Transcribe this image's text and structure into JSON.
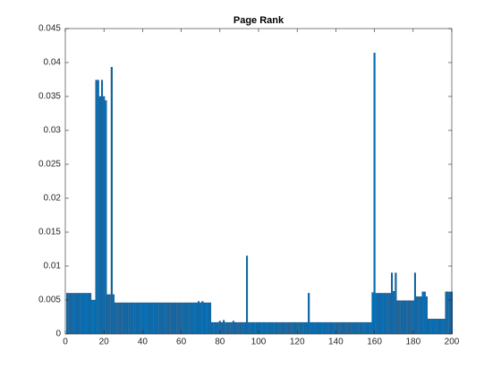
{
  "chart_data": {
    "type": "bar",
    "title": "Page Rank",
    "color": "#0072bd",
    "x": [
      1,
      2,
      3,
      4,
      5,
      6,
      7,
      8,
      9,
      10,
      11,
      12,
      13,
      14,
      15,
      16,
      17,
      18,
      19,
      20,
      21,
      22,
      23,
      24,
      25,
      26,
      27,
      28,
      29,
      30,
      31,
      32,
      33,
      34,
      35,
      36,
      37,
      38,
      39,
      40,
      41,
      42,
      43,
      44,
      45,
      46,
      47,
      48,
      49,
      50,
      51,
      52,
      53,
      54,
      55,
      56,
      57,
      58,
      59,
      60,
      61,
      62,
      63,
      64,
      65,
      66,
      67,
      68,
      69,
      70,
      71,
      72,
      73,
      74,
      75,
      76,
      77,
      78,
      79,
      80,
      81,
      82,
      83,
      84,
      85,
      86,
      87,
      88,
      89,
      90,
      91,
      92,
      93,
      94,
      95,
      96,
      97,
      98,
      99,
      100,
      101,
      102,
      103,
      104,
      105,
      106,
      107,
      108,
      109,
      110,
      111,
      112,
      113,
      114,
      115,
      116,
      117,
      118,
      119,
      120,
      121,
      122,
      123,
      124,
      125,
      126,
      127,
      128,
      129,
      130,
      131,
      132,
      133,
      134,
      135,
      136,
      137,
      138,
      139,
      140,
      141,
      142,
      143,
      144,
      145,
      146,
      147,
      148,
      149,
      150,
      151,
      152,
      153,
      154,
      155,
      156,
      157,
      158,
      159,
      160,
      161,
      162,
      163,
      164,
      165,
      166,
      167,
      168,
      169,
      170,
      171,
      172,
      173,
      174,
      175,
      176,
      177,
      178,
      179,
      180,
      181,
      182,
      183,
      184,
      185,
      186,
      187,
      188,
      189,
      190,
      191,
      192,
      193,
      194,
      195,
      196,
      197,
      198,
      199,
      200
    ],
    "values": [
      0.006,
      0.006,
      0.006,
      0.006,
      0.006,
      0.006,
      0.006,
      0.006,
      0.006,
      0.006,
      0.006,
      0.006,
      0.006,
      0.005,
      0.005,
      0.0374,
      0.0374,
      0.035,
      0.0374,
      0.035,
      0.0344,
      0.0058,
      0.0058,
      0.0393,
      0.0058,
      0.0046,
      0.0046,
      0.0046,
      0.0046,
      0.0046,
      0.0046,
      0.0046,
      0.0046,
      0.0046,
      0.0046,
      0.0046,
      0.0046,
      0.0046,
      0.0046,
      0.0046,
      0.0046,
      0.0046,
      0.0046,
      0.0046,
      0.0046,
      0.0046,
      0.0046,
      0.0046,
      0.0046,
      0.0046,
      0.0046,
      0.0046,
      0.0046,
      0.0046,
      0.0046,
      0.0046,
      0.0046,
      0.0046,
      0.0046,
      0.0046,
      0.0046,
      0.0046,
      0.0046,
      0.0046,
      0.0046,
      0.0046,
      0.0046,
      0.0046,
      0.0048,
      0.0046,
      0.0048,
      0.0046,
      0.0046,
      0.0046,
      0.0046,
      0.0017,
      0.0017,
      0.0017,
      0.0017,
      0.0019,
      0.0017,
      0.002,
      0.0017,
      0.0017,
      0.0017,
      0.0017,
      0.0019,
      0.0017,
      0.0017,
      0.0017,
      0.0017,
      0.0017,
      0.0017,
      0.0115,
      0.0017,
      0.0017,
      0.0017,
      0.0017,
      0.0017,
      0.0017,
      0.0017,
      0.0017,
      0.0017,
      0.0017,
      0.0017,
      0.0017,
      0.0017,
      0.0017,
      0.0017,
      0.0017,
      0.0017,
      0.0017,
      0.0017,
      0.0017,
      0.0017,
      0.0017,
      0.0017,
      0.0017,
      0.0017,
      0.0017,
      0.0017,
      0.0017,
      0.0017,
      0.0017,
      0.0017,
      0.006,
      0.0017,
      0.0017,
      0.0017,
      0.0017,
      0.0017,
      0.0017,
      0.0017,
      0.0017,
      0.0017,
      0.0017,
      0.0017,
      0.0017,
      0.0017,
      0.0017,
      0.0017,
      0.0017,
      0.0017,
      0.0017,
      0.0017,
      0.0017,
      0.0017,
      0.0017,
      0.0017,
      0.0017,
      0.0017,
      0.0017,
      0.0017,
      0.0017,
      0.0017,
      0.0017,
      0.0017,
      0.0017,
      0.0061,
      0.0414,
      0.006,
      0.006,
      0.006,
      0.006,
      0.006,
      0.006,
      0.006,
      0.006,
      0.009,
      0.0063,
      0.009,
      0.0049,
      0.0049,
      0.0049,
      0.0049,
      0.0049,
      0.0049,
      0.0049,
      0.0049,
      0.0049,
      0.009,
      0.0055,
      0.0055,
      0.0055,
      0.0062,
      0.0062,
      0.0055,
      0.0022,
      0.0022,
      0.0022,
      0.0022,
      0.0022,
      0.0022,
      0.0022,
      0.0022,
      0.0022,
      0.0062,
      0.0062,
      0.0062,
      0.0062
    ],
    "xlim": [
      0,
      200
    ],
    "xticks": [
      0,
      20,
      40,
      60,
      80,
      100,
      120,
      140,
      160,
      180,
      200
    ],
    "ylim": [
      0,
      0.045
    ],
    "yticks": [
      0,
      0.005,
      0.01,
      0.015,
      0.02,
      0.025,
      0.03,
      0.035,
      0.04,
      0.045
    ]
  }
}
